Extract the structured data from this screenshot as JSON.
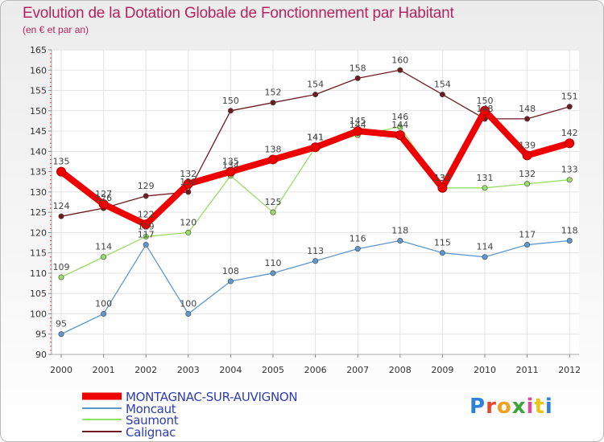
{
  "header": {
    "title": "Evolution de la Dotation Globale de Fonctionnement par Habitant",
    "subtitle": "(en € et par an)"
  },
  "logo": {
    "text": "Proxiti"
  },
  "colors": {
    "title": "#b6235f",
    "legend_text": "#2d3db5",
    "axis": "#aaaaaa",
    "grid": "#e3e3e3"
  },
  "chart_data": {
    "type": "line",
    "title": "Evolution de la Dotation Globale de Fonctionnement par Habitant",
    "subtitle": "(en € et par an)",
    "xlabel": "",
    "ylabel": "",
    "x": [
      "2000",
      "2001",
      "2002",
      "2003",
      "2004",
      "2005",
      "2006",
      "2007",
      "2008",
      "2009",
      "2010",
      "2011",
      "2012"
    ],
    "ylim": [
      90,
      165
    ],
    "yticks": [
      90,
      95,
      100,
      105,
      110,
      115,
      120,
      125,
      130,
      135,
      140,
      145,
      150,
      155,
      160,
      165
    ],
    "grid": true,
    "legend_position": "bottom-left",
    "series": [
      {
        "name": "MONTAGNAC-SUR-AUVIGNON",
        "color": "#ee0000",
        "values": [
          135,
          127,
          122,
          132,
          135,
          138,
          141,
          145,
          144,
          131,
          150,
          139,
          142
        ]
      },
      {
        "name": "Moncaut",
        "color": "#5f98cc",
        "values": [
          95,
          100,
          117,
          100,
          108,
          110,
          113,
          116,
          118,
          115,
          114,
          117,
          118
        ]
      },
      {
        "name": "Saumont",
        "color": "#99dd66",
        "values": [
          109,
          114,
          119,
          120,
          134,
          125,
          141,
          144,
          146,
          131,
          131,
          132,
          133
        ]
      },
      {
        "name": "Calignac",
        "color": "#6e1b22",
        "values": [
          124,
          126,
          129,
          130,
          150,
          152,
          154,
          158,
          160,
          154,
          148,
          148,
          151
        ]
      }
    ]
  }
}
